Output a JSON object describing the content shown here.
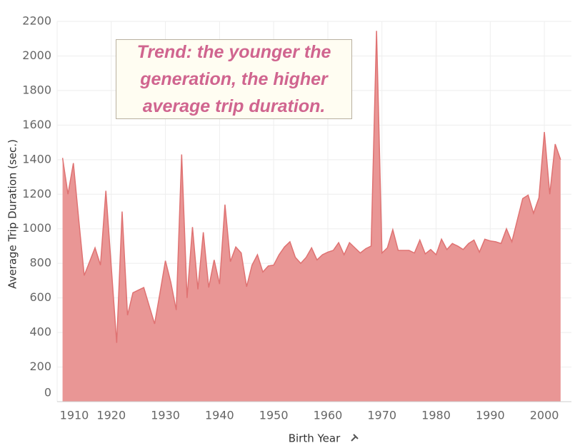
{
  "chart_data": {
    "type": "area",
    "x_label": "Birth Year",
    "y_label": "Average Trip Duration (sec.)",
    "annotation": "Trend: the younger the generation, the higher average trip duration.",
    "x": [
      1911,
      1912,
      1913,
      1914,
      1915,
      1916,
      1917,
      1918,
      1919,
      1920,
      1921,
      1922,
      1923,
      1924,
      1925,
      1926,
      1927,
      1928,
      1929,
      1930,
      1931,
      1932,
      1933,
      1934,
      1935,
      1936,
      1937,
      1938,
      1939,
      1940,
      1941,
      1942,
      1943,
      1944,
      1945,
      1946,
      1947,
      1948,
      1949,
      1950,
      1951,
      1952,
      1953,
      1954,
      1955,
      1956,
      1957,
      1958,
      1959,
      1960,
      1961,
      1962,
      1963,
      1964,
      1965,
      1966,
      1967,
      1968,
      1969,
      1970,
      1971,
      1972,
      1973,
      1974,
      1975,
      1976,
      1977,
      1978,
      1979,
      1980,
      1981,
      1982,
      1983,
      1984,
      1985,
      1986,
      1987,
      1988,
      1989,
      1990,
      1991,
      1992,
      1993,
      1994,
      1995,
      1996,
      1997,
      1998,
      1999,
      2000,
      2001,
      2002,
      2003
    ],
    "series": [
      {
        "name": "Average Trip Duration",
        "color": "#e8908f",
        "values": [
          1410,
          1200,
          1380,
          1050,
          730,
          810,
          890,
          790,
          1220,
          780,
          340,
          1100,
          500,
          630,
          645,
          660,
          555,
          450,
          630,
          815,
          690,
          530,
          1430,
          600,
          1010,
          650,
          980,
          660,
          820,
          680,
          1140,
          810,
          895,
          860,
          665,
          790,
          850,
          750,
          785,
          790,
          850,
          895,
          925,
          835,
          800,
          835,
          890,
          820,
          850,
          865,
          875,
          920,
          850,
          920,
          890,
          860,
          885,
          900,
          2145,
          860,
          890,
          995,
          875,
          875,
          875,
          860,
          935,
          855,
          880,
          850,
          940,
          880,
          915,
          900,
          880,
          915,
          935,
          865,
          940,
          930,
          925,
          915,
          1000,
          925,
          1050,
          1175,
          1195,
          1090,
          1180,
          1560,
          1200,
          1490,
          1400
        ]
      }
    ],
    "xlim": [
      1910,
      2005
    ],
    "xticks": [
      1910,
      1920,
      1930,
      1940,
      1950,
      1960,
      1970,
      1980,
      1990,
      2000
    ],
    "ylim": [
      0,
      2200
    ],
    "yticks": [
      0,
      200,
      400,
      600,
      800,
      1000,
      1200,
      1400,
      1600,
      1800,
      2000,
      2200
    ],
    "grid": true
  }
}
